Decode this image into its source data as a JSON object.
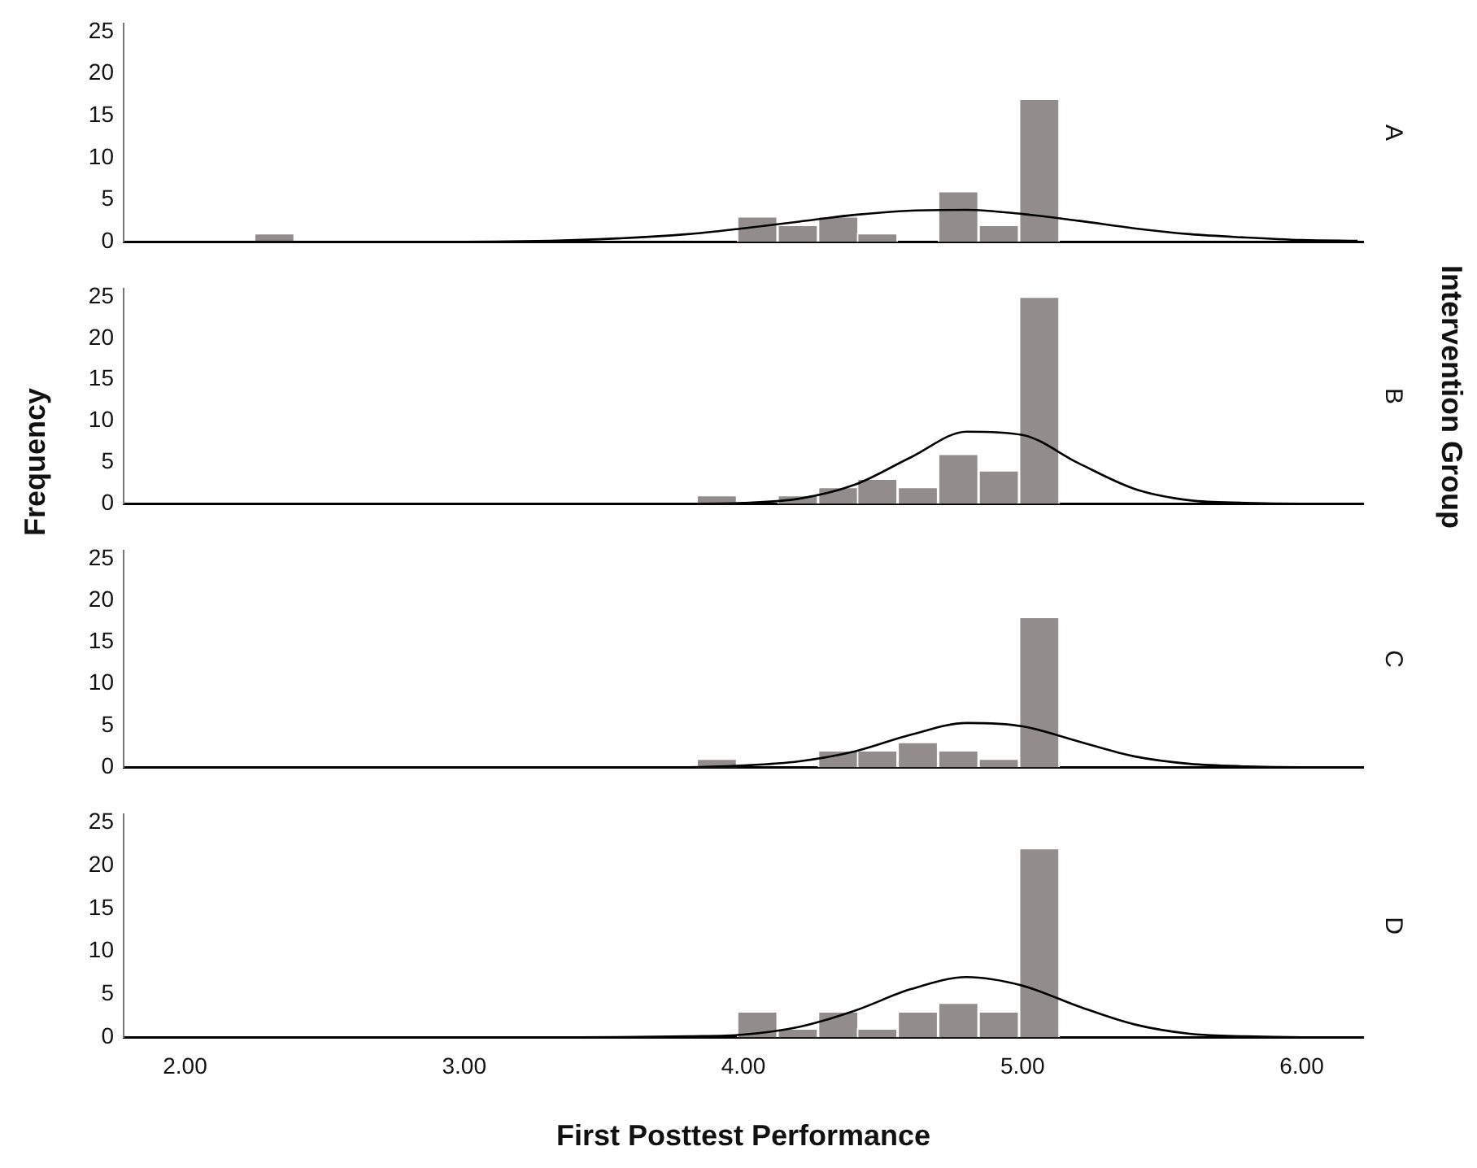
{
  "chart_data": [
    {
      "type": "histogram",
      "y2label": "A",
      "color": "#928d8c",
      "xlim": [
        1.78,
        6.22
      ],
      "ylim": [
        0,
        26
      ],
      "yticks": [
        0,
        5,
        10,
        15,
        20,
        25
      ],
      "tick_labels": "y",
      "bins": [
        2.25,
        2.39,
        2.54,
        2.68,
        2.83,
        2.97,
        3.11,
        3.26,
        3.4,
        3.55,
        3.69,
        3.83,
        3.98,
        4.12,
        4.27,
        4.41,
        4.55,
        4.7,
        4.84,
        4.99,
        5.13
      ],
      "values": [
        1,
        0,
        0,
        0,
        0,
        0,
        0,
        0,
        0,
        0,
        0,
        0,
        3,
        2,
        3,
        1,
        0,
        6,
        2,
        17
      ],
      "series": [
        {
          "type": "line",
          "color": "#000000",
          "x": [
            1.8,
            2.6,
            3.0,
            3.4,
            3.8,
            4.0,
            4.2,
            4.4,
            4.6,
            4.8,
            5.0,
            5.2,
            5.4,
            5.6,
            5.8,
            6.0,
            6.2
          ],
          "values": [
            0,
            0,
            0,
            0.2,
            0.9,
            1.6,
            2.4,
            3.2,
            3.7,
            3.8,
            3.3,
            2.5,
            1.6,
            0.9,
            0.5,
            0.2,
            0.1
          ]
        }
      ]
    },
    {
      "type": "histogram",
      "y2label": "B",
      "ylabel": "Frequency",
      "annotations": [
        "Intervention Group"
      ],
      "color": "#928d8c",
      "xlim": [
        1.78,
        6.22
      ],
      "ylim": [
        0,
        26
      ],
      "yticks": [
        0,
        5,
        10,
        15,
        20,
        25
      ],
      "tick_labels": "y",
      "bins": [
        2.25,
        2.39,
        2.54,
        2.68,
        2.83,
        2.97,
        3.11,
        3.26,
        3.4,
        3.55,
        3.69,
        3.83,
        3.98,
        4.12,
        4.27,
        4.41,
        4.55,
        4.7,
        4.84,
        4.99,
        5.13
      ],
      "values": [
        0,
        0,
        0,
        0,
        0,
        0,
        0,
        0,
        0,
        0,
        0,
        1,
        0,
        1,
        2,
        3,
        2,
        6,
        4,
        25
      ],
      "series": [
        {
          "type": "line",
          "color": "#000000",
          "x": [
            1.8,
            2.6,
            3.0,
            3.4,
            3.8,
            4.0,
            4.2,
            4.4,
            4.6,
            4.8,
            5.0,
            5.2,
            5.4,
            5.6,
            5.8,
            6.0,
            6.2
          ],
          "values": [
            0,
            0,
            0,
            0,
            0,
            0.1,
            0.6,
            2.3,
            5.6,
            8.7,
            8.3,
            4.9,
            1.8,
            0.4,
            0.1,
            0,
            0
          ]
        }
      ]
    },
    {
      "type": "histogram",
      "y2label": "C",
      "color": "#928d8c",
      "xlim": [
        1.78,
        6.22
      ],
      "ylim": [
        0,
        26
      ],
      "yticks": [
        0,
        5,
        10,
        15,
        20,
        25
      ],
      "tick_labels": "y",
      "bins": [
        2.25,
        2.39,
        2.54,
        2.68,
        2.83,
        2.97,
        3.11,
        3.26,
        3.4,
        3.55,
        3.69,
        3.83,
        3.98,
        4.12,
        4.27,
        4.41,
        4.55,
        4.7,
        4.84,
        4.99,
        5.13
      ],
      "values": [
        0,
        0,
        0,
        0,
        0,
        0,
        0,
        0,
        0,
        0,
        0,
        1,
        0,
        0,
        2,
        2,
        3,
        2,
        1,
        18
      ],
      "series": [
        {
          "type": "line",
          "color": "#000000",
          "x": [
            1.8,
            2.6,
            3.0,
            3.4,
            3.8,
            4.0,
            4.2,
            4.4,
            4.6,
            4.8,
            5.0,
            5.2,
            5.4,
            5.6,
            5.8,
            6.0,
            6.2
          ],
          "values": [
            0,
            0,
            0,
            0,
            0,
            0.2,
            0.7,
            1.9,
            3.9,
            5.3,
            4.9,
            3.1,
            1.3,
            0.4,
            0.1,
            0,
            0
          ]
        }
      ]
    },
    {
      "type": "histogram",
      "y2label": "D",
      "xlabel": "First Posttest Performance",
      "color": "#928d8c",
      "xlim": [
        1.78,
        6.22
      ],
      "ylim": [
        0,
        26
      ],
      "yticks": [
        0,
        5,
        10,
        15,
        20,
        25
      ],
      "xticks": [
        {
          "value": 2,
          "label": "2.00"
        },
        {
          "value": 3,
          "label": "3.00"
        },
        {
          "value": 4,
          "label": "4.00"
        },
        {
          "value": 5,
          "label": "5.00"
        },
        {
          "value": 6,
          "label": "6.00"
        }
      ],
      "bins": [
        2.25,
        2.39,
        2.54,
        2.68,
        2.83,
        2.97,
        3.11,
        3.26,
        3.4,
        3.55,
        3.69,
        3.83,
        3.98,
        4.12,
        4.27,
        4.41,
        4.55,
        4.7,
        4.84,
        4.99,
        5.13
      ],
      "values": [
        0,
        0,
        0,
        0,
        0,
        0,
        0,
        0,
        0,
        0,
        0,
        0,
        3,
        1,
        3,
        1,
        3,
        4,
        3,
        22
      ],
      "series": [
        {
          "type": "line",
          "color": "#000000",
          "x": [
            1.8,
            2.6,
            3.0,
            3.4,
            3.8,
            4.0,
            4.2,
            4.4,
            4.6,
            4.8,
            5.0,
            5.2,
            5.4,
            5.6,
            5.8,
            6.0,
            6.2
          ],
          "values": [
            0,
            0,
            0,
            0,
            0.1,
            0.3,
            1.2,
            3.1,
            5.6,
            7,
            6,
            3.6,
            1.5,
            0.4,
            0.1,
            0,
            0
          ]
        }
      ]
    }
  ]
}
